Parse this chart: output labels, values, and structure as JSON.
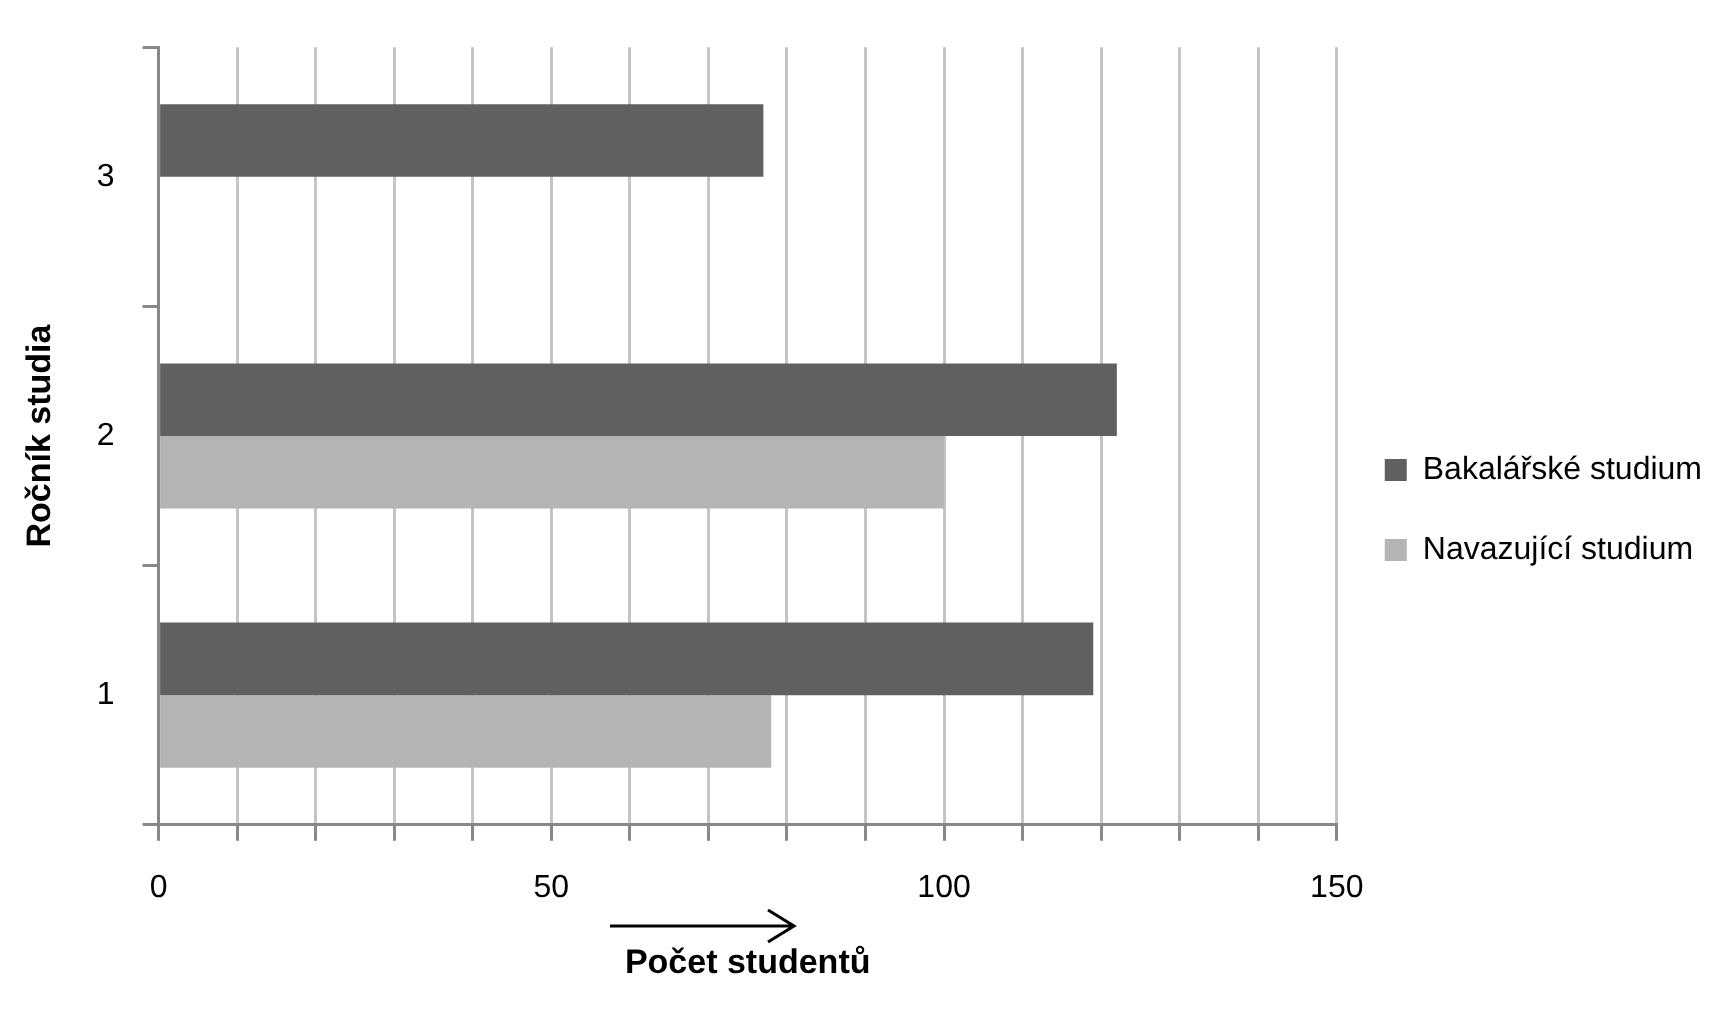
{
  "chart_data": {
    "type": "bar",
    "orientation": "horizontal",
    "xlabel": "Počet studentů",
    "ylabel": "Ročník studia",
    "categories": [
      "3",
      "2",
      "1"
    ],
    "series": [
      {
        "name": "Bakalářské studium",
        "color": "#606060",
        "values": [
          77,
          122,
          119
        ]
      },
      {
        "name": "Navazující studium",
        "color": "#b4b4b4",
        "values": [
          null,
          100,
          78
        ]
      }
    ],
    "xlim": [
      0,
      150
    ],
    "xticks": [
      0,
      {
        "value": 10,
        "label": null
      },
      {
        "value": 20,
        "label": null
      },
      {
        "value": 30,
        "label": null
      },
      {
        "value": 40,
        "label": null
      },
      50,
      {
        "value": 60,
        "label": null
      },
      {
        "value": 70,
        "label": null
      },
      {
        "value": 80,
        "label": null
      },
      {
        "value": 90,
        "label": null
      },
      100,
      {
        "value": 110,
        "label": null
      },
      {
        "value": 120,
        "label": null
      },
      {
        "value": 130,
        "label": null
      },
      {
        "value": 140,
        "label": null
      },
      150
    ],
    "grid": "x",
    "legend": "right"
  }
}
